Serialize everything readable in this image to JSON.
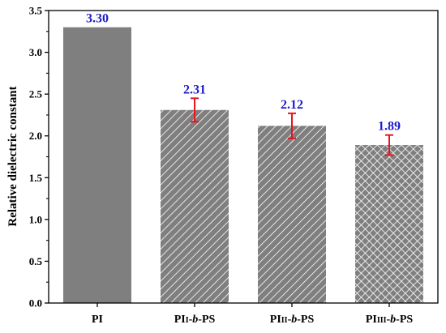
{
  "chart_data": {
    "type": "bar",
    "ylabel": "Relative dielectric constant",
    "xlabel": "",
    "ylim": [
      0.0,
      3.5
    ],
    "yticks": [
      "0.0",
      "0.5",
      "1.0",
      "1.5",
      "2.0",
      "2.5",
      "3.0",
      "3.5"
    ],
    "categories": [
      {
        "main": "PI",
        "sub": "",
        "italic": "",
        "tail": ""
      },
      {
        "main": "PI",
        "sub": "I",
        "italic": "b",
        "tail": "PS"
      },
      {
        "main": "PI",
        "sub": "II",
        "italic": "b",
        "tail": "PS"
      },
      {
        "main": "PI",
        "sub": "III",
        "italic": "b",
        "tail": "PS"
      }
    ],
    "values": [
      3.3,
      2.31,
      2.12,
      1.89
    ],
    "value_labels": [
      "3.30",
      "2.31",
      "2.12",
      "1.89"
    ],
    "errors": [
      null,
      0.14,
      0.15,
      0.12
    ],
    "fills": [
      "solid",
      "diagonal",
      "diagonal",
      "crosshatch"
    ],
    "grid": false,
    "legend": "none",
    "colors": {
      "bar": "#7f7f7f",
      "hatch_line": "#ffffff",
      "error_bar": "#e8141e",
      "value_label": "#1c1ccc",
      "axis": "#000000"
    }
  }
}
